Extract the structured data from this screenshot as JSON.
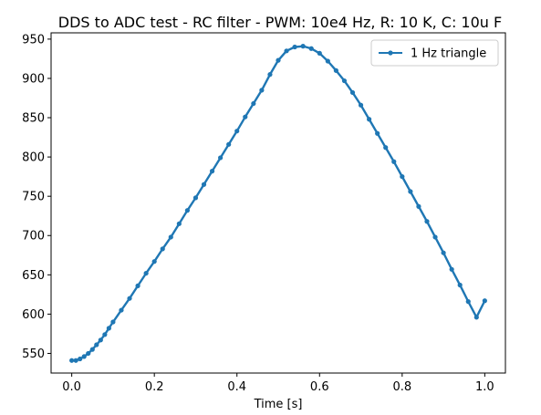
{
  "chart_data": {
    "type": "line",
    "title": "DDS to ADC test - RC filter - PWM: 10e4 Hz, R: 10 K, C: 10u F",
    "xlabel": "Time [s]",
    "ylabel": "",
    "xlim": [
      -0.05,
      1.05
    ],
    "ylim": [
      525,
      958
    ],
    "xticks": [
      0.0,
      0.2,
      0.4,
      0.6,
      0.8,
      1.0
    ],
    "xtick_labels": [
      "0.0",
      "0.2",
      "0.4",
      "0.6",
      "0.8",
      "1.0"
    ],
    "yticks": [
      550,
      600,
      650,
      700,
      750,
      800,
      850,
      900,
      950
    ],
    "ytick_labels": [
      "550",
      "600",
      "650",
      "700",
      "750",
      "800",
      "850",
      "900",
      "950"
    ],
    "grid": false,
    "legend_position": "top-right",
    "series": [
      {
        "name": "1 Hz triangle",
        "color": "#1f77b4",
        "marker": "circle",
        "x": [
          0.0,
          0.01,
          0.02,
          0.03,
          0.04,
          0.05,
          0.06,
          0.07,
          0.08,
          0.09,
          0.1,
          0.12,
          0.14,
          0.16,
          0.18,
          0.2,
          0.22,
          0.24,
          0.26,
          0.28,
          0.3,
          0.32,
          0.34,
          0.36,
          0.38,
          0.4,
          0.42,
          0.44,
          0.46,
          0.48,
          0.5,
          0.52,
          0.54,
          0.56,
          0.58,
          0.6,
          0.62,
          0.64,
          0.66,
          0.68,
          0.7,
          0.72,
          0.74,
          0.76,
          0.78,
          0.8,
          0.82,
          0.84,
          0.86,
          0.88,
          0.9,
          0.92,
          0.94,
          0.96,
          0.98,
          1.0
        ],
        "y": [
          541,
          541,
          543,
          546,
          550,
          555,
          561,
          567,
          574,
          582,
          590,
          605,
          620,
          636,
          652,
          667,
          683,
          698,
          715,
          732,
          748,
          765,
          782,
          799,
          816,
          833,
          851,
          868,
          885,
          905,
          923,
          935,
          940,
          941,
          938,
          932,
          922,
          910,
          897,
          882,
          866,
          848,
          830,
          812,
          794,
          775,
          756,
          737,
          718,
          698,
          678,
          657,
          637,
          616,
          596,
          617
        ]
      }
    ]
  }
}
